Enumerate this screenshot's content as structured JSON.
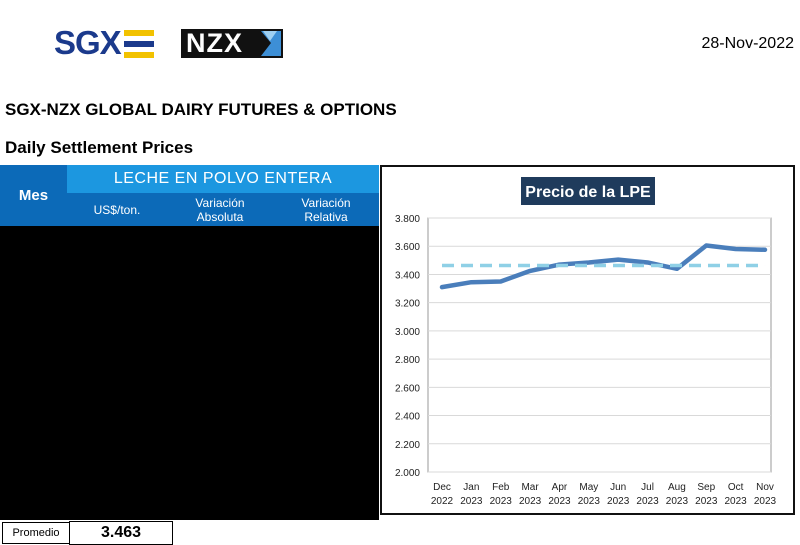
{
  "header": {
    "sgx_logo": "SGX",
    "nzx_logo": "NZX",
    "date": "28-Nov-2022",
    "title": "SGX-NZX GLOBAL DAIRY FUTURES & OPTIONS",
    "subtitle": "Daily Settlement Prices"
  },
  "colors": {
    "sgx_blue": "#1b3a8c",
    "sgx_yellow": "#f2c200",
    "header_dark_blue": "#0c6ab8",
    "header_light_blue": "#1c97e0",
    "series_line": "#4a7ebb",
    "average_line": "#8fd0e6",
    "chart_title_bg": "#1f3b5c"
  },
  "table": {
    "mes_header": "Mes",
    "group_header": "LECHE EN POLVO ENTERA",
    "col_price": "US$/ton.",
    "col_abs_line1": "Variación",
    "col_abs_line2": "Absoluta",
    "col_rel_line1": "Variación",
    "col_rel_line2": "Relativa",
    "rows": [
      {
        "mes": "",
        "price": "",
        "abs": "",
        "rel": ""
      },
      {
        "mes": "",
        "price": "",
        "abs": "",
        "rel": ""
      },
      {
        "mes": "",
        "price": "",
        "abs": "",
        "rel": ""
      },
      {
        "mes": "",
        "price": "",
        "abs": "",
        "rel": ""
      },
      {
        "mes": "",
        "price": "",
        "abs": "",
        "rel": ""
      },
      {
        "mes": "",
        "price": "",
        "abs": "",
        "rel": ""
      },
      {
        "mes": "",
        "price": "",
        "abs": "",
        "rel": ""
      },
      {
        "mes": "",
        "price": "",
        "abs": "",
        "rel": ""
      },
      {
        "mes": "",
        "price": "",
        "abs": "",
        "rel": ""
      },
      {
        "mes": "",
        "price": "",
        "abs": "",
        "rel": ""
      },
      {
        "mes": "",
        "price": "",
        "abs": "",
        "rel": ""
      },
      {
        "mes": "",
        "price": "",
        "abs": "",
        "rel": ""
      }
    ],
    "promedio_label": "Promedio",
    "promedio_value": "3.463"
  },
  "chart_data": {
    "type": "line",
    "title": "Precio de la LPE",
    "categories": [
      [
        "Dec",
        "2022"
      ],
      [
        "Jan",
        "2023"
      ],
      [
        "Feb",
        "2023"
      ],
      [
        "Mar",
        "2023"
      ],
      [
        "Apr",
        "2023"
      ],
      [
        "May",
        "2023"
      ],
      [
        "Jun",
        "2023"
      ],
      [
        "Jul",
        "2023"
      ],
      [
        "Aug",
        "2023"
      ],
      [
        "Sep",
        "2023"
      ],
      [
        "Oct",
        "2023"
      ],
      [
        "Nov",
        "2023"
      ]
    ],
    "series": [
      {
        "values": [
          3310,
          3345,
          3350,
          3425,
          3470,
          3485,
          3505,
          3485,
          3440,
          3605,
          3580,
          3575
        ],
        "color": "#4a7ebb",
        "style": "solid"
      },
      {
        "values": [
          3463,
          3463,
          3463,
          3463,
          3463,
          3463,
          3463,
          3463,
          3463,
          3463,
          3463,
          3463
        ],
        "color": "#8fd0e6",
        "style": "dashed"
      }
    ],
    "y_ticks": [
      "2.000",
      "2.200",
      "2.400",
      "2.600",
      "2.800",
      "3.000",
      "3.200",
      "3.400",
      "3.600",
      "3.800"
    ],
    "ylim": [
      2000,
      3800
    ],
    "grid": true,
    "xlabel": "",
    "ylabel": ""
  }
}
